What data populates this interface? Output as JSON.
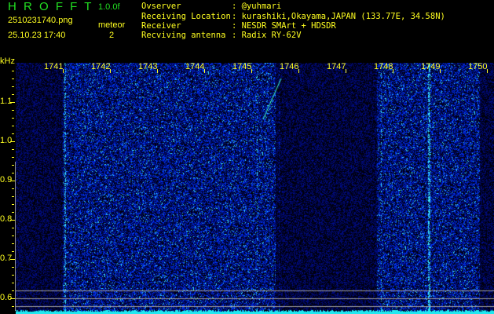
{
  "header": {
    "app_title": "H R O F F T",
    "version": "1.0.0f",
    "filename": "2510231740.png",
    "datetime": "25.10.23 17:40",
    "meteor_label": "meteor",
    "meteor_count": "2"
  },
  "info": [
    {
      "label": "Ovserver",
      "value": "@yuhmari"
    },
    {
      "label": "Receiving Location",
      "value": "kurashiki,Okayama,JAPAN (133.77E, 34.58N)"
    },
    {
      "label": "Receiver",
      "value": "NESDR SMArt + HDSDR"
    },
    {
      "label": "Recviving antenna",
      "value": "Radix RY-62V"
    }
  ],
  "chart_data": {
    "type": "heatmap",
    "ylabel": "kHz",
    "y_ticks": [
      "1.1",
      "1.0",
      "0.9",
      "0.8",
      "0.7",
      "0.6"
    ],
    "y_tick_values": [
      1.1,
      1.0,
      0.9,
      0.8,
      0.7,
      0.6
    ],
    "ylim": [
      0.56,
      1.2
    ],
    "x_ticks": [
      "1741",
      "1742",
      "1743",
      "1744",
      "1745",
      "1746",
      "1747",
      "1748",
      "1749",
      "1750"
    ],
    "xlim": [
      "1740",
      "1750"
    ],
    "colors": {
      "background": "#000010",
      "noise": "#1a2aff",
      "strong": "#40ffff",
      "ticks": "#ffff20",
      "baseline": "#20e8f0"
    }
  }
}
